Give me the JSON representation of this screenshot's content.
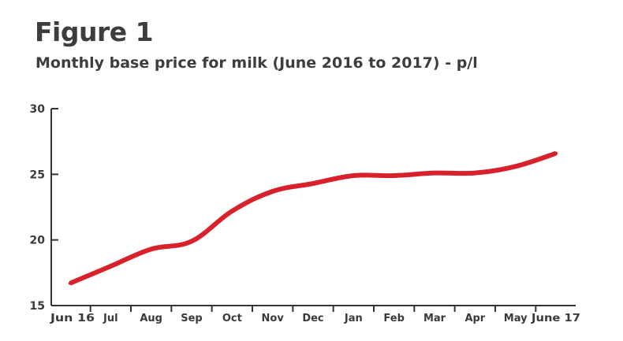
{
  "figure": {
    "label": "Figure 1",
    "subtitle": "Monthly base price for milk (June 2016 to 2017) - p/l"
  },
  "colors": {
    "line": "#d9212b",
    "axis": "#333333",
    "text": "#3a3a3a"
  },
  "chart_data": {
    "type": "line",
    "title": "Figure 1",
    "subtitle": "Monthly base price for milk (June 2016 to 2017) - p/l",
    "xlabel": "",
    "ylabel": "",
    "categories": [
      "Jun 16",
      "Jul",
      "Aug",
      "Sep",
      "Oct",
      "Nov",
      "Dec",
      "Jan",
      "Feb",
      "Mar",
      "Apr",
      "May",
      "June 17"
    ],
    "ylim": [
      15,
      30
    ],
    "yticks": [
      15,
      20,
      25,
      30
    ],
    "grid": false,
    "legend": "none",
    "series": [
      {
        "values": [
          16.7,
          18.0,
          19.3,
          19.9,
          22.2,
          23.7,
          24.3,
          24.9,
          24.9,
          25.1,
          25.1,
          25.6,
          26.6
        ]
      }
    ]
  }
}
